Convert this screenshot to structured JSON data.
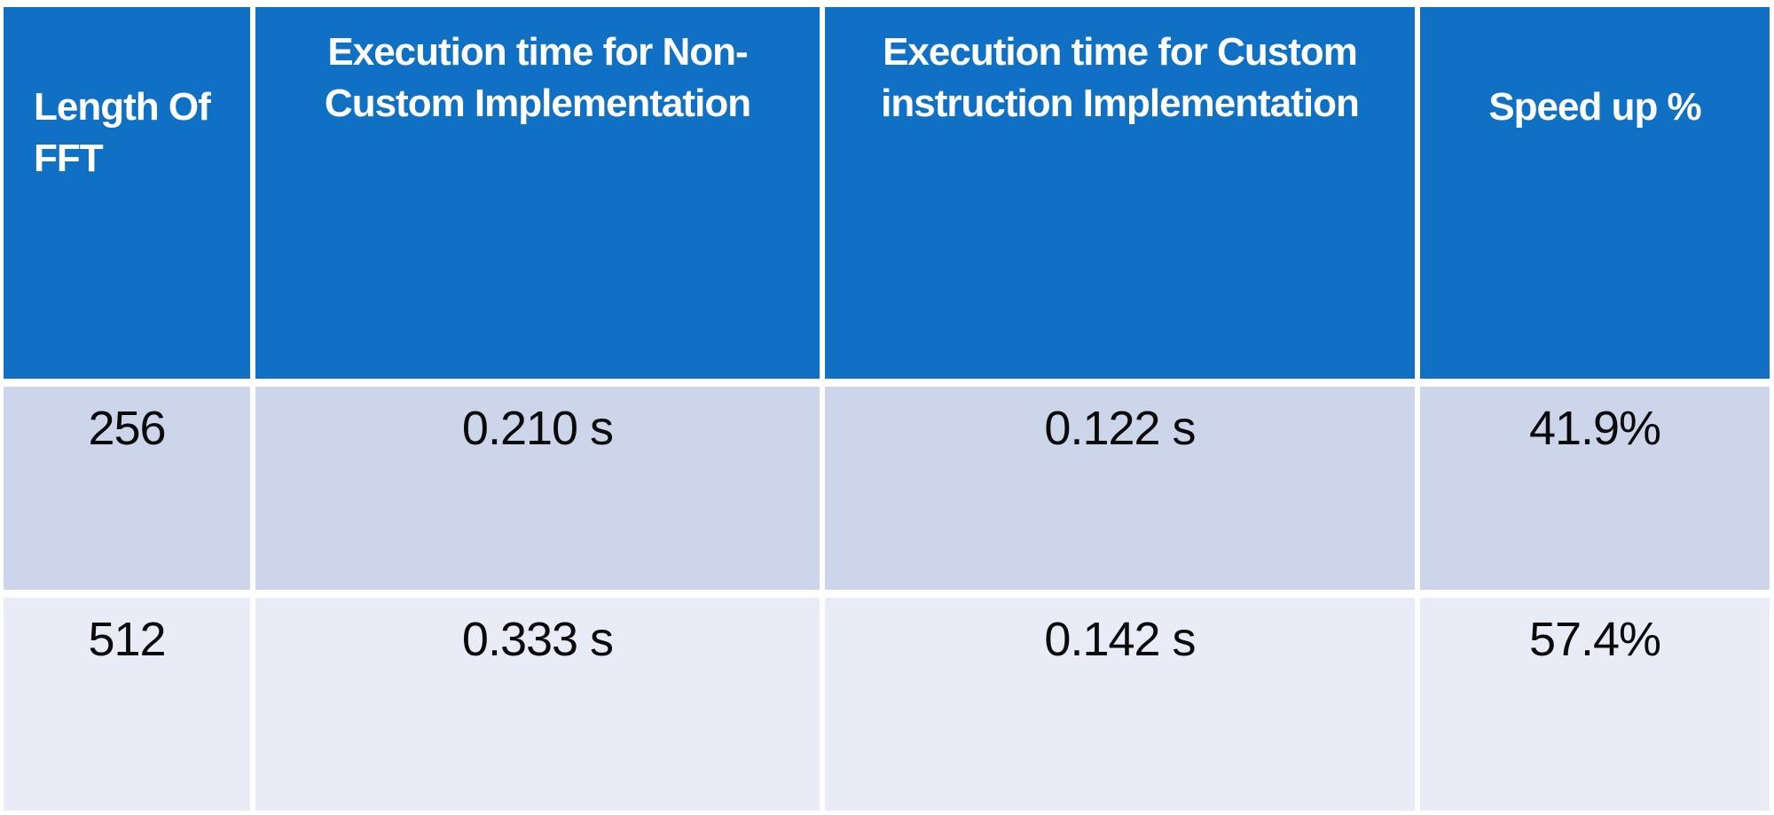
{
  "table": {
    "columns": [
      {
        "label": "Length Of FFT"
      },
      {
        "label": "Execution time for Non-Custom Implementation"
      },
      {
        "label": "Execution time for Custom instruction Implementation"
      },
      {
        "label": "Speed up %"
      }
    ],
    "rows": [
      {
        "cells": [
          "256",
          "0.210 s",
          "0.122 s",
          "41.9%"
        ]
      },
      {
        "cells": [
          "512",
          "0.333 s",
          "0.142 s",
          "57.4%"
        ]
      }
    ]
  },
  "chart_data": {
    "type": "table",
    "columns": [
      "Length Of FFT",
      "Execution time for Non-Custom Implementation",
      "Execution time for Custom instruction Implementation",
      "Speed up %"
    ],
    "rows": [
      [
        "256",
        "0.210 s",
        "0.122 s",
        "41.9%"
      ],
      [
        "512",
        "0.333 s",
        "0.142 s",
        "57.4%"
      ]
    ]
  },
  "colors": {
    "header_bg": "#1070C4",
    "row1_bg": "#CCD5EA",
    "row2_bg": "#E9EBF7",
    "border_color": "#FFFFFF",
    "header_text": "#FFFFFF",
    "body_text": "#0A0A0A"
  }
}
